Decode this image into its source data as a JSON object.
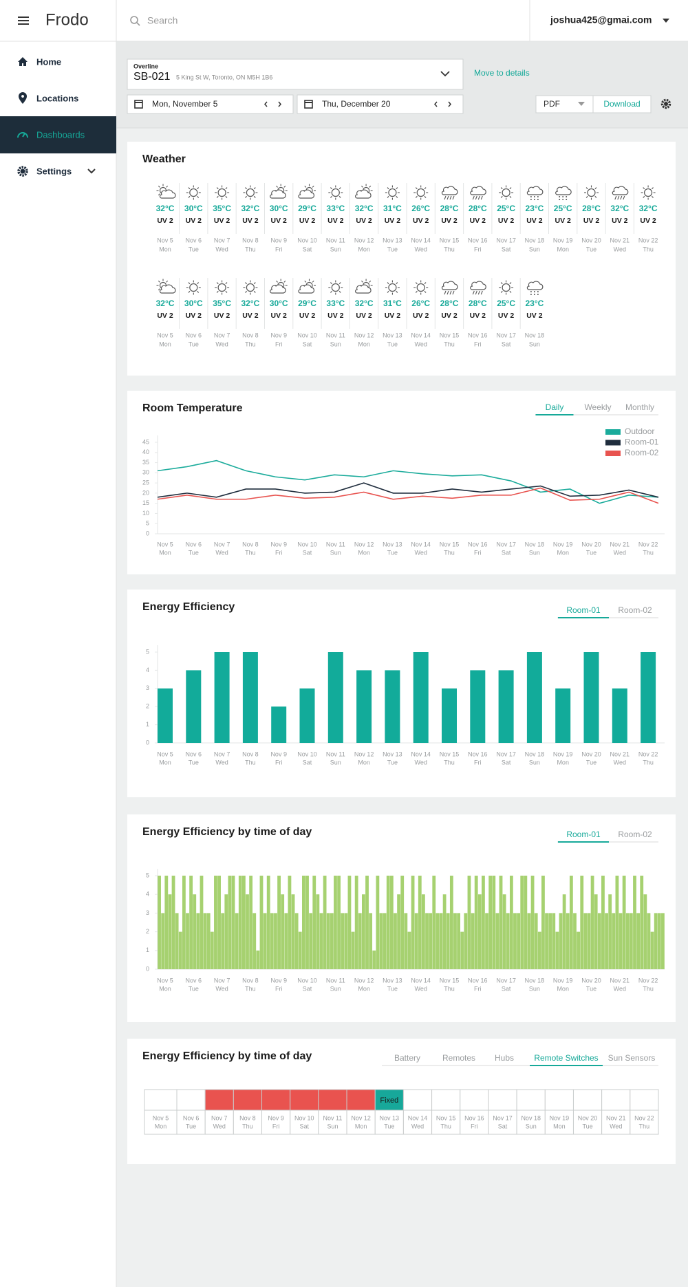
{
  "header": {
    "app_name": "Frodo",
    "search_placeholder": "Search",
    "user_email": "joshua425@gmai.com"
  },
  "nav": {
    "items": [
      "Home",
      "Locations",
      "Dashboards",
      "Settings"
    ],
    "active": 2
  },
  "toolbar": {
    "overline": "Overline",
    "site_code": "SB-021",
    "address": "5 King St W, Toronto, ON M5H 1B6",
    "details_link": "Move to details",
    "start_date": "Mon, November 5",
    "end_date": "Thu, December 20",
    "export_format": "PDF",
    "download": "Download"
  },
  "days": [
    {
      "date": "Nov 5",
      "weekday": "Mon"
    },
    {
      "date": "Nov 6",
      "weekday": "Tue"
    },
    {
      "date": "Nov 7",
      "weekday": "Wed"
    },
    {
      "date": "Nov 8",
      "weekday": "Thu"
    },
    {
      "date": "Nov 9",
      "weekday": "Fri"
    },
    {
      "date": "Nov 10",
      "weekday": "Sat"
    },
    {
      "date": "Nov 11",
      "weekday": "Sun"
    },
    {
      "date": "Nov 12",
      "weekday": "Mon"
    },
    {
      "date": "Nov 13",
      "weekday": "Tue"
    },
    {
      "date": "Nov 14",
      "weekday": "Wed"
    },
    {
      "date": "Nov 15",
      "weekday": "Thu"
    },
    {
      "date": "Nov 16",
      "weekday": "Fri"
    },
    {
      "date": "Nov 17",
      "weekday": "Sat"
    },
    {
      "date": "Nov 18",
      "weekday": "Sun"
    },
    {
      "date": "Nov 19",
      "weekday": "Mon"
    },
    {
      "date": "Nov 20",
      "weekday": "Tue"
    },
    {
      "date": "Nov 21",
      "weekday": "Wed"
    },
    {
      "date": "Nov 22",
      "weekday": "Thu"
    }
  ],
  "weather": {
    "title": "Weather",
    "rows": [
      [
        {
          "temp": "32°C",
          "uv": "UV 2",
          "icon": "partly-cloudy"
        },
        {
          "temp": "30°C",
          "uv": "UV 2",
          "icon": "sunny"
        },
        {
          "temp": "35°C",
          "uv": "UV 2",
          "icon": "sunny"
        },
        {
          "temp": "32°C",
          "uv": "UV 2",
          "icon": "sunny"
        },
        {
          "temp": "30°C",
          "uv": "UV 2",
          "icon": "cloudy-sun"
        },
        {
          "temp": "29°C",
          "uv": "UV 2",
          "icon": "cloudy-sun"
        },
        {
          "temp": "33°C",
          "uv": "UV 2",
          "icon": "sunny"
        },
        {
          "temp": "32°C",
          "uv": "UV 2",
          "icon": "cloudy-sun"
        },
        {
          "temp": "31°C",
          "uv": "UV 2",
          "icon": "sunny"
        },
        {
          "temp": "26°C",
          "uv": "UV 2",
          "icon": "sunny"
        },
        {
          "temp": "28°C",
          "uv": "UV 2",
          "icon": "rain"
        },
        {
          "temp": "28°C",
          "uv": "UV 2",
          "icon": "rain"
        },
        {
          "temp": "25°C",
          "uv": "UV 2",
          "icon": "sunny"
        },
        {
          "temp": "23°C",
          "uv": "UV 2",
          "icon": "snow"
        },
        {
          "temp": "25°C",
          "uv": "UV 2",
          "icon": "snow"
        },
        {
          "temp": "28°C",
          "uv": "UV 2",
          "icon": "sunny"
        },
        {
          "temp": "32°C",
          "uv": "UV 2",
          "icon": "rain"
        },
        {
          "temp": "32°C",
          "uv": "UV 2",
          "icon": "sunny"
        }
      ],
      [
        {
          "temp": "32°C",
          "uv": "UV 2",
          "icon": "partly-cloudy"
        },
        {
          "temp": "30°C",
          "uv": "UV 2",
          "icon": "sunny"
        },
        {
          "temp": "35°C",
          "uv": "UV 2",
          "icon": "sunny"
        },
        {
          "temp": "32°C",
          "uv": "UV 2",
          "icon": "sunny"
        },
        {
          "temp": "30°C",
          "uv": "UV 2",
          "icon": "cloudy-sun"
        },
        {
          "temp": "29°C",
          "uv": "UV 2",
          "icon": "cloudy-sun"
        },
        {
          "temp": "33°C",
          "uv": "UV 2",
          "icon": "sunny"
        },
        {
          "temp": "32°C",
          "uv": "UV 2",
          "icon": "cloudy-sun"
        },
        {
          "temp": "31°C",
          "uv": "UV 2",
          "icon": "sunny"
        },
        {
          "temp": "26°C",
          "uv": "UV 2",
          "icon": "sunny"
        },
        {
          "temp": "28°C",
          "uv": "UV 2",
          "icon": "rain"
        },
        {
          "temp": "28°C",
          "uv": "UV 2",
          "icon": "rain"
        },
        {
          "temp": "25°C",
          "uv": "UV 2",
          "icon": "sunny"
        },
        {
          "temp": "23°C",
          "uv": "UV 2",
          "icon": "snow"
        }
      ]
    ]
  },
  "room_temperature": {
    "type": "line",
    "title": "Room Temperature",
    "tabs": [
      "Daily",
      "Weekly",
      "Monthly"
    ],
    "active_tab": 0,
    "ylim": [
      0,
      45
    ],
    "yticks": [
      0,
      5,
      10,
      15,
      20,
      25,
      30,
      35,
      40,
      45
    ],
    "legend": "top-right",
    "series": [
      {
        "name": "Outdoor",
        "color": "#1aab9b",
        "values": [
          31,
          33,
          36,
          31,
          28,
          26.5,
          29,
          28,
          31,
          29.5,
          28.5,
          29,
          26,
          20.5,
          22,
          15,
          19,
          18
        ]
      },
      {
        "name": "Room-01",
        "color": "#1f2d3d",
        "values": [
          18,
          20,
          18,
          22,
          22,
          20,
          20.5,
          25,
          20,
          20,
          22,
          20.5,
          22,
          23.5,
          18.5,
          19,
          21.5,
          18
        ]
      },
      {
        "name": "Room-02",
        "color": "#e8534f",
        "values": [
          17,
          19,
          17,
          17,
          19,
          17.5,
          18,
          20.5,
          17,
          18.5,
          17.5,
          19,
          19,
          22.5,
          16.5,
          17,
          20.5,
          15
        ]
      }
    ]
  },
  "energy_efficiency": {
    "type": "bar",
    "title": "Energy Efficiency",
    "tabs": [
      "Room-01",
      "Room-02"
    ],
    "active_tab": 0,
    "ylim": [
      0,
      5
    ],
    "yticks": [
      0,
      1,
      2,
      3,
      4,
      5
    ],
    "color": "#12ab9a",
    "values": [
      3,
      4,
      5,
      5,
      2,
      3,
      5,
      4,
      4,
      5,
      3,
      4,
      4,
      5,
      3,
      5,
      3,
      5
    ]
  },
  "energy_by_time": {
    "type": "bar",
    "title": "Energy Efficiency by time of day",
    "tabs": [
      "Room-01",
      "Room-02"
    ],
    "active_tab": 0,
    "ylim": [
      0,
      5
    ],
    "yticks": [
      0,
      1,
      2,
      3,
      4,
      5
    ],
    "color": "#a6d170",
    "values": [
      5,
      3,
      5,
      4,
      5,
      3,
      2,
      5,
      3,
      5,
      4,
      3,
      5,
      3,
      3,
      2,
      5,
      5,
      3,
      4,
      5,
      5,
      3,
      5,
      5,
      4,
      5,
      3,
      1,
      5,
      3,
      5,
      3,
      3,
      5,
      4,
      3,
      5,
      4,
      3,
      2,
      5,
      5,
      3,
      5,
      4,
      3,
      5,
      3,
      3,
      5,
      5,
      3,
      3,
      5,
      2,
      5,
      3,
      4,
      5,
      3,
      1,
      5,
      3,
      3,
      5,
      5,
      3,
      4,
      5,
      3,
      2,
      5,
      3,
      5,
      4,
      3,
      3,
      5,
      3,
      3,
      4,
      3,
      5,
      3,
      3,
      2,
      3,
      5,
      3,
      5,
      4,
      5,
      3,
      5,
      5,
      3,
      5,
      4,
      3,
      5,
      3,
      3,
      5,
      5,
      3,
      5,
      3,
      2,
      5,
      3,
      3,
      3,
      2,
      3,
      4,
      3,
      5,
      3,
      2,
      5,
      3,
      3,
      5,
      4,
      3,
      5,
      3,
      4,
      3,
      5,
      3,
      5,
      3,
      3,
      5,
      3,
      5,
      4,
      3,
      2,
      3,
      3,
      3
    ]
  },
  "device_status": {
    "title": "Energy Efficiency by time of day",
    "tabs": [
      "Battery",
      "Remotes",
      "Hubs",
      "Remote Switches",
      "Sun Sensors"
    ],
    "active_tab": 3,
    "cell_colors": [
      null,
      null,
      "#e9534f",
      "#e9534f",
      "#e9534f",
      "#e9534f",
      "#e9534f",
      "#e9534f",
      "#17a89a",
      null,
      null,
      null,
      null,
      null,
      null,
      null,
      null,
      null
    ],
    "cell_labels": [
      null,
      null,
      null,
      null,
      null,
      null,
      null,
      null,
      "Fixed",
      null,
      null,
      null,
      null,
      null,
      null,
      null,
      null,
      null
    ]
  }
}
